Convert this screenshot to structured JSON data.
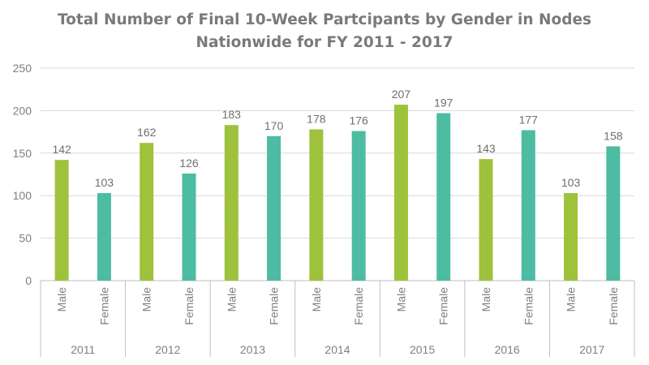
{
  "chart_data": {
    "type": "bar",
    "title": "Total Number of Final 10-Week Partcipants by Gender in Nodes",
    "subtitle": "Nationwide for FY 2011 - 2017",
    "xlabel": "",
    "ylabel": "",
    "ylim": [
      0,
      250
    ],
    "yticks": [
      "0",
      "50",
      "100",
      "150",
      "200",
      "250"
    ],
    "grid": true,
    "legend": "none",
    "groups": [
      {
        "year": "2011",
        "bars": [
          {
            "gender": "Male",
            "value": 142
          },
          {
            "gender": "Female",
            "value": 103
          }
        ]
      },
      {
        "year": "2012",
        "bars": [
          {
            "gender": "Male",
            "value": 162
          },
          {
            "gender": "Female",
            "value": 126
          }
        ]
      },
      {
        "year": "2013",
        "bars": [
          {
            "gender": "Male",
            "value": 183
          },
          {
            "gender": "Female",
            "value": 170
          }
        ]
      },
      {
        "year": "2014",
        "bars": [
          {
            "gender": "Male",
            "value": 178
          },
          {
            "gender": "Female",
            "value": 176
          }
        ]
      },
      {
        "year": "2015",
        "bars": [
          {
            "gender": "Male",
            "value": 207
          },
          {
            "gender": "Female",
            "value": 197
          }
        ]
      },
      {
        "year": "2016",
        "bars": [
          {
            "gender": "Male",
            "value": 143
          },
          {
            "gender": "Female",
            "value": 177
          }
        ]
      },
      {
        "year": "2017",
        "bars": [
          {
            "gender": "Male",
            "value": 103
          },
          {
            "gender": "Female",
            "value": 158
          }
        ]
      }
    ],
    "colors": {
      "Male": "#9ec23b",
      "Female": "#4dbca2",
      "grid": "#d9d9d9",
      "axis": "#bfbfbf"
    }
  }
}
